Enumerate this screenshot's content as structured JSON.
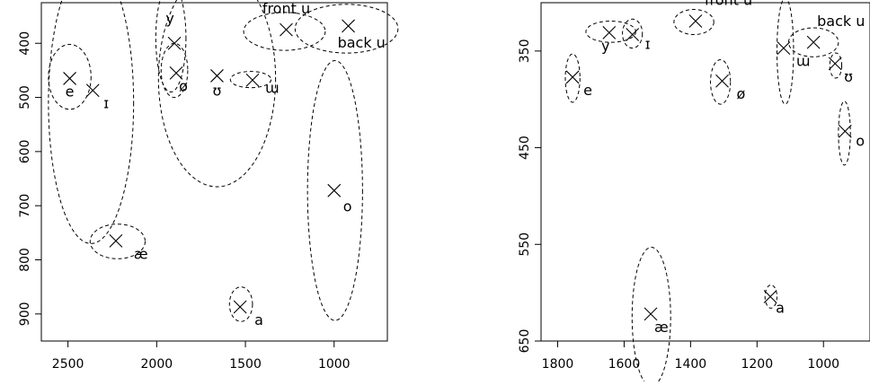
{
  "chart_data": [
    {
      "type": "scatter",
      "title": "",
      "xlabel": "",
      "ylabel": "",
      "x_reversed": true,
      "y_reversed": true,
      "xlim": [
        2650,
        700
      ],
      "ylim": [
        325,
        950
      ],
      "x_ticks": [
        2500,
        2000,
        1500,
        1000
      ],
      "y_ticks": [
        400,
        500,
        600,
        700,
        800,
        900
      ],
      "marker": "×",
      "points": [
        {
          "label": "e",
          "x": 2490,
          "y": 465
        },
        {
          "label": "ɪ",
          "x": 2360,
          "y": 487
        },
        {
          "label": "y",
          "x": 1900,
          "y": 400
        },
        {
          "label": "ø",
          "x": 1890,
          "y": 455
        },
        {
          "label": "ʊ",
          "x": 1660,
          "y": 460
        },
        {
          "label": "ɯ",
          "x": 1460,
          "y": 468
        },
        {
          "label": "front u",
          "x": 1270,
          "y": 375
        },
        {
          "label": "back u",
          "x": 920,
          "y": 368
        },
        {
          "label": "o",
          "x": 1000,
          "y": 672
        },
        {
          "label": "æ",
          "x": 2230,
          "y": 765
        },
        {
          "label": "a",
          "x": 1530,
          "y": 887
        }
      ],
      "ellipses": [
        {
          "label": "e",
          "cx": 2490,
          "cy": 462,
          "rx": 120,
          "ry": 60
        },
        {
          "label": "ɪ",
          "cx": 2370,
          "cy": 510,
          "rx": 240,
          "ry": 260
        },
        {
          "label": "y",
          "cx": 1920,
          "cy": 390,
          "rx": 85,
          "ry": 100
        },
        {
          "label": "ø",
          "cx": 1900,
          "cy": 450,
          "rx": 75,
          "ry": 50
        },
        {
          "label": "ʊ",
          "cx": 1660,
          "cy": 465,
          "rx": 330,
          "ry": 200
        },
        {
          "label": "ɯ",
          "cx": 1470,
          "cy": 467,
          "rx": 115,
          "ry": 15
        },
        {
          "label": "front u",
          "cx": 1280,
          "cy": 378,
          "rx": 230,
          "ry": 35
        },
        {
          "label": "back u",
          "cx": 930,
          "cy": 373,
          "rx": 290,
          "ry": 45
        },
        {
          "label": "o",
          "cx": 995,
          "cy": 672,
          "rx": 155,
          "ry": 240
        },
        {
          "label": "æ",
          "cx": 2220,
          "cy": 766,
          "rx": 155,
          "ry": 32
        },
        {
          "label": "a",
          "cx": 1525,
          "cy": 882,
          "rx": 65,
          "ry": 32
        }
      ]
    },
    {
      "type": "scatter",
      "title": "",
      "xlabel": "",
      "ylabel": "",
      "x_reversed": true,
      "y_reversed": true,
      "xlim": [
        1850,
        860
      ],
      "ylim": [
        300,
        650
      ],
      "x_ticks": [
        1800,
        1600,
        1400,
        1200,
        1000
      ],
      "y_ticks": [
        350,
        450,
        550,
        650
      ],
      "marker": "×",
      "points": [
        {
          "label": "y",
          "x": 1645,
          "y": 331
        },
        {
          "label": "ɪ",
          "x": 1575,
          "y": 333
        },
        {
          "label": "front u",
          "x": 1385,
          "y": 319
        },
        {
          "label": "e",
          "x": 1755,
          "y": 377
        },
        {
          "label": "ø",
          "x": 1305,
          "y": 381
        },
        {
          "label": "ɯ",
          "x": 1120,
          "y": 347
        },
        {
          "label": "back u",
          "x": 1030,
          "y": 341
        },
        {
          "label": "ʊ",
          "x": 965,
          "y": 363
        },
        {
          "label": "o",
          "x": 935,
          "y": 433
        },
        {
          "label": "a",
          "x": 1160,
          "y": 604
        },
        {
          "label": "æ",
          "x": 1520,
          "y": 622
        }
      ],
      "ellipses": [
        {
          "label": "y",
          "cx": 1640,
          "cy": 330,
          "rx": 75,
          "ry": 11
        },
        {
          "label": "ɪ",
          "cx": 1575,
          "cy": 332,
          "rx": 30,
          "ry": 15
        },
        {
          "label": "front u",
          "cx": 1390,
          "cy": 320,
          "rx": 60,
          "ry": 13
        },
        {
          "label": "e",
          "cx": 1755,
          "cy": 378,
          "rx": 22,
          "ry": 25
        },
        {
          "label": "ø",
          "cx": 1310,
          "cy": 382,
          "rx": 30,
          "ry": 23
        },
        {
          "label": "ɯ",
          "cx": 1115,
          "cy": 350,
          "rx": 25,
          "ry": 55
        },
        {
          "label": "back u",
          "cx": 1030,
          "cy": 341,
          "rx": 75,
          "ry": 15
        },
        {
          "label": "ʊ",
          "cx": 963,
          "cy": 365,
          "rx": 18,
          "ry": 13
        },
        {
          "label": "o",
          "cx": 937,
          "cy": 435,
          "rx": 18,
          "ry": 33
        },
        {
          "label": "a",
          "cx": 1158,
          "cy": 604,
          "rx": 18,
          "ry": 12
        },
        {
          "label": "æ",
          "cx": 1518,
          "cy": 625,
          "rx": 58,
          "ry": 72
        }
      ]
    }
  ]
}
